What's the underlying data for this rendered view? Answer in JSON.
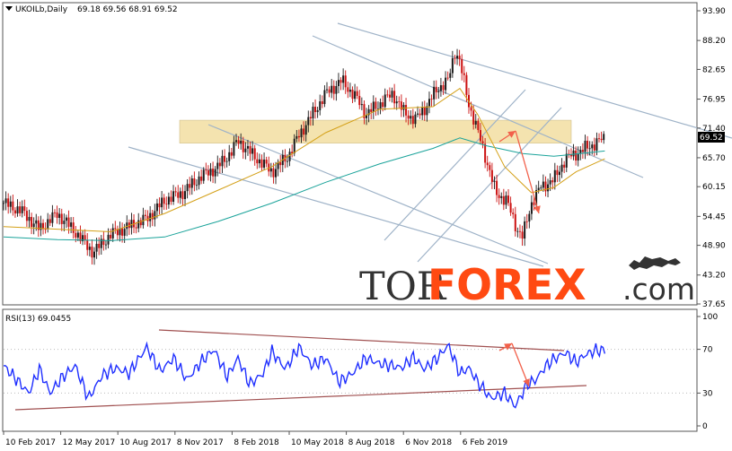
{
  "price_panel": {
    "symbol": "UKOILb,Daily",
    "ohlc": "69.18 69.56 68.91 69.52",
    "current_price_label": "69.52"
  },
  "rsi_panel": {
    "title": "RSI(13) 69.0455"
  },
  "watermark": {
    "text_dark": "TOR",
    "text_accent": "FOREX",
    "suffix": ".com",
    "accent_color": "#ff4a12",
    "dark_color": "#333333"
  },
  "colors": {
    "bull_candle": "#1a1a1a",
    "bear_candle": "#cc1111",
    "ma_fast": "#d4a017",
    "ma_slow": "#1aa39a",
    "trendline": "#9fb3c8",
    "resistance_zone": "#f3dfa2",
    "forecast_arrow": "#f2604a",
    "rsi_line": "#1f2fff",
    "rsi_channel": "#a05050"
  },
  "chart_data": [
    {
      "type": "candlestick",
      "title": "UKOILb,Daily",
      "ylim": [
        37.65,
        93.9
      ],
      "y_ticks": [
        "93.90",
        "88.20",
        "82.65",
        "76.95",
        "71.40",
        "65.70",
        "60.15",
        "54.45",
        "48.90",
        "43.20",
        "37.65"
      ],
      "x_ticks": [
        "10 Feb 2017",
        "12 May 2017",
        "10 Aug 2017",
        "8 Nov 2017",
        "8 Feb 2018",
        "10 May 2018",
        "8 Aug 2018",
        "6 Nov 2018",
        "6 Feb 2019"
      ],
      "close_path": [
        [
          0,
          57.0
        ],
        [
          20,
          55.5
        ],
        [
          40,
          52.0
        ],
        [
          60,
          55.0
        ],
        [
          80,
          51.5
        ],
        [
          100,
          47.5
        ],
        [
          120,
          51.0
        ],
        [
          140,
          52.5
        ],
        [
          160,
          54.0
        ],
        [
          180,
          57.5
        ],
        [
          200,
          59.0
        ],
        [
          220,
          62.0
        ],
        [
          240,
          64.0
        ],
        [
          255,
          67.0
        ],
        [
          262,
          69.0
        ],
        [
          280,
          66.0
        ],
        [
          300,
          63.0
        ],
        [
          318,
          66.0
        ],
        [
          330,
          70.0
        ],
        [
          345,
          74.0
        ],
        [
          360,
          78.0
        ],
        [
          378,
          80.5
        ],
        [
          395,
          77.0
        ],
        [
          405,
          74.0
        ],
        [
          420,
          76.0
        ],
        [
          435,
          78.0
        ],
        [
          447,
          74.5
        ],
        [
          460,
          73.0
        ],
        [
          472,
          75.5
        ],
        [
          485,
          79.0
        ],
        [
          497,
          80.5
        ],
        [
          505,
          86.5
        ],
        [
          510,
          84.0
        ],
        [
          520,
          76.0
        ],
        [
          535,
          68.0
        ],
        [
          550,
          59.0
        ],
        [
          562,
          57.5
        ],
        [
          574,
          52.0
        ],
        [
          580,
          50.5
        ],
        [
          590,
          57.0
        ],
        [
          600,
          60.0
        ],
        [
          615,
          61.5
        ],
        [
          628,
          65.5
        ],
        [
          640,
          66.5
        ],
        [
          650,
          67.5
        ],
        [
          662,
          68.5
        ],
        [
          672,
          69.52
        ]
      ],
      "moving_averages": [
        {
          "name": "MA fast",
          "values": [
            [
              0,
              52.5
            ],
            [
              60,
              52.0
            ],
            [
              120,
              51.5
            ],
            [
              180,
              55.0
            ],
            [
              240,
              59.5
            ],
            [
              300,
              64.0
            ],
            [
              360,
              70.5
            ],
            [
              420,
              75.0
            ],
            [
              480,
              75.5
            ],
            [
              510,
              79.0
            ],
            [
              530,
              74.0
            ],
            [
              560,
              64.0
            ],
            [
              590,
              59.0
            ],
            [
              615,
              60.0
            ],
            [
              640,
              63.0
            ],
            [
              672,
              65.5
            ]
          ]
        },
        {
          "name": "MA slow",
          "values": [
            [
              0,
              50.5
            ],
            [
              60,
              50.0
            ],
            [
              120,
              49.8
            ],
            [
              180,
              50.5
            ],
            [
              240,
              53.5
            ],
            [
              300,
              57.0
            ],
            [
              360,
              61.0
            ],
            [
              420,
              64.5
            ],
            [
              480,
              67.5
            ],
            [
              510,
              69.5
            ],
            [
              540,
              68.0
            ],
            [
              580,
              66.5
            ],
            [
              615,
              66.0
            ],
            [
              645,
              66.5
            ],
            [
              672,
              67.0
            ]
          ]
        }
      ],
      "resistance_zone": [
        68.5,
        72.9
      ]
    },
    {
      "type": "line",
      "title": "RSI(13) 69.0455",
      "ylim": [
        0,
        100
      ],
      "y_ticks": [
        "100",
        "70",
        "30",
        "0"
      ],
      "series": [
        {
          "name": "RSI(13)",
          "values": [
            [
              0,
              55
            ],
            [
              15,
              42
            ],
            [
              28,
              30
            ],
            [
              40,
              52
            ],
            [
              52,
              30
            ],
            [
              65,
              44
            ],
            [
              80,
              55
            ],
            [
              95,
              25
            ],
            [
              110,
              46
            ],
            [
              125,
              53
            ],
            [
              140,
              48
            ],
            [
              160,
              72
            ],
            [
              175,
              50
            ],
            [
              190,
              62
            ],
            [
              205,
              42
            ],
            [
              220,
              58
            ],
            [
              235,
              70
            ],
            [
              250,
              45
            ],
            [
              262,
              62
            ],
            [
              275,
              38
            ],
            [
              290,
              48
            ],
            [
              300,
              68
            ],
            [
              315,
              52
            ],
            [
              330,
              72
            ],
            [
              345,
              55
            ],
            [
              360,
              62
            ],
            [
              375,
              40
            ],
            [
              390,
              48
            ],
            [
              405,
              62
            ],
            [
              420,
              57
            ],
            [
              435,
              55
            ],
            [
              445,
              53
            ],
            [
              458,
              63
            ],
            [
              470,
              52
            ],
            [
              485,
              62
            ],
            [
              497,
              74
            ],
            [
              510,
              48
            ],
            [
              520,
              53
            ],
            [
              530,
              40
            ],
            [
              545,
              25
            ],
            [
              560,
              30
            ],
            [
              572,
              18
            ],
            [
              585,
              38
            ],
            [
              595,
              42
            ],
            [
              605,
              54
            ],
            [
              615,
              61
            ],
            [
              628,
              67
            ],
            [
              640,
              58
            ],
            [
              650,
              65
            ],
            [
              662,
              69
            ],
            [
              672,
              69
            ]
          ]
        }
      ]
    }
  ]
}
